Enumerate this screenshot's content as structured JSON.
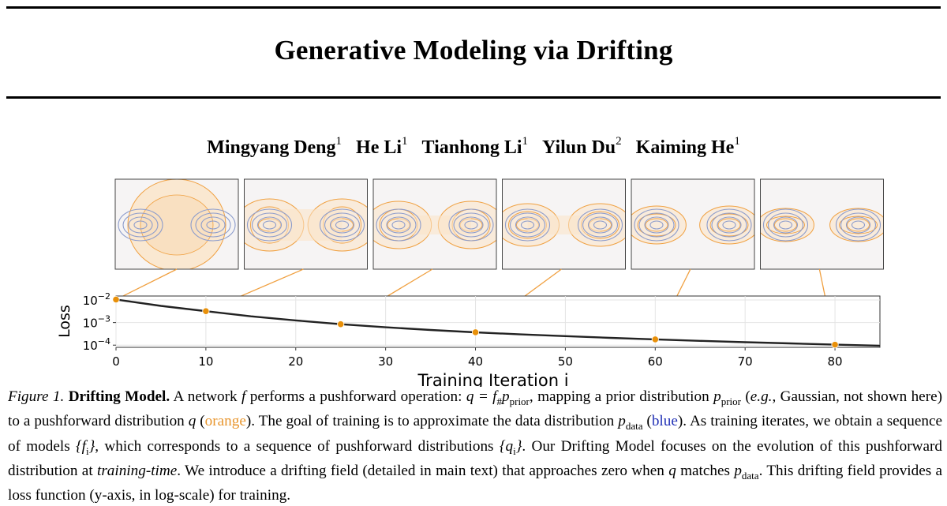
{
  "paper": {
    "title": "Generative Modeling via Drifting",
    "authors": [
      {
        "name": "Mingyang Deng",
        "aff": "1"
      },
      {
        "name": "He Li",
        "aff": "1"
      },
      {
        "name": "Tianhong Li",
        "aff": "1"
      },
      {
        "name": "Yilun Du",
        "aff": "2"
      },
      {
        "name": "Kaiming He",
        "aff": "1"
      }
    ]
  },
  "colors": {
    "orange": "#f0a040",
    "blue": "#8c9ccc",
    "curve": "#222222",
    "marker": "#e8900a"
  },
  "chart_data": {
    "type": "line",
    "xlabel": "Training Iteration i",
    "ylabel": "Loss",
    "xlim": [
      0,
      85
    ],
    "y_log_scale": true,
    "ylim": [
      8e-05,
      0.015
    ],
    "x_ticks": [
      0,
      10,
      20,
      30,
      40,
      50,
      60,
      70,
      80
    ],
    "y_ticks": [
      {
        "value": 0.01,
        "base": "10",
        "exp": "−2"
      },
      {
        "value": 0.001,
        "base": "10",
        "exp": "−3"
      },
      {
        "value": 0.0001,
        "base": "10",
        "exp": "−4"
      }
    ],
    "grid": true,
    "series": [
      {
        "values_x": [
          0,
          5,
          10,
          15,
          20,
          25,
          30,
          35,
          40,
          45,
          50,
          55,
          60,
          65,
          70,
          75,
          80,
          85
        ],
        "values_y": [
          0.0105,
          0.0055,
          0.0032,
          0.0019,
          0.00125,
          0.00085,
          0.00062,
          0.00047,
          0.00037,
          0.0003,
          0.00025,
          0.00021,
          0.00018,
          0.000155,
          0.000135,
          0.00012,
          0.000105,
          9.5e-05
        ]
      }
    ],
    "highlighted_points": [
      {
        "x": 0,
        "y": 0.0105
      },
      {
        "x": 10,
        "y": 0.0032
      },
      {
        "x": 25,
        "y": 0.00085
      },
      {
        "x": 40,
        "y": 0.00037
      },
      {
        "x": 60,
        "y": 0.00018
      },
      {
        "x": 80,
        "y": 0.000105
      }
    ],
    "snapshot_overlap": [
      0.2,
      0.55,
      0.9,
      1.25,
      1.8,
      2.1
    ]
  },
  "caption": {
    "label": "Figure 1.",
    "bold": "Drifting Model.",
    "t1": "A network",
    "f": "f",
    "t2": "performs a pushforward operation:",
    "eq": "q = f",
    "sharp": "#",
    "p": "p",
    "prior": "prior",
    "t3": ", mapping a prior distribution",
    "t4": "(",
    "eg": "e.g.",
    "t5": ", Gaussian, not shown here) to a pushforward distribution",
    "q": "q",
    "t6": "(",
    "orange": "orange",
    "t7": "). The goal of training is to approximate the data distribution",
    "data": "data",
    "t8": "(",
    "blue": "blue",
    "t9": "). As training iterates, we obtain a sequence of models",
    "fi": "{f",
    "i": "i",
    "close": "}",
    "t10": ", which corresponds to a sequence of pushforward distributions",
    "qi": "{q",
    "t11": ". Our Drifting Model focuses on the evolution of this pushforward distribution at",
    "tt": "training-time",
    "t12": ". We introduce a drifting field (detailed in main text) that approaches zero when",
    "t13": "matches",
    "t14": ". This drifting field provides a loss function (y-axis, in log-scale) for training."
  }
}
